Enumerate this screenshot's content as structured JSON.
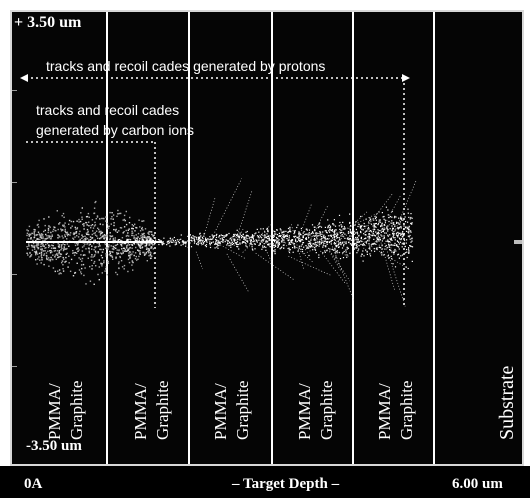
{
  "axis": {
    "top_label": "+ 3.50 um",
    "bottom_label": "-3.50 um",
    "x_start": "0A",
    "x_title": "– Target Depth –",
    "x_end": "6.00 um"
  },
  "annotations": {
    "protons": "tracks and recoil cades generated by protons",
    "carbon_line1": "tracks and recoil cades",
    "carbon_line2": "generated by carbon ions"
  },
  "layers": [
    {
      "label_line1": "PMMA/",
      "label_line2": "Graphite"
    },
    {
      "label_line1": "PMMA/",
      "label_line2": "Graphite"
    },
    {
      "label_line1": "PMMA/",
      "label_line2": "Graphite"
    },
    {
      "label_line1": "PMMA/",
      "label_line2": "Graphite"
    },
    {
      "label_line1": "PMMA/",
      "label_line2": "Graphite"
    },
    {
      "label_line1": "Substrate",
      "label_line2": ""
    }
  ],
  "colors": {
    "background": "#050505",
    "foreground": "#ffffff",
    "tracks": "#dcdcdc",
    "carbon_cloud": "#a8a8a8"
  }
}
